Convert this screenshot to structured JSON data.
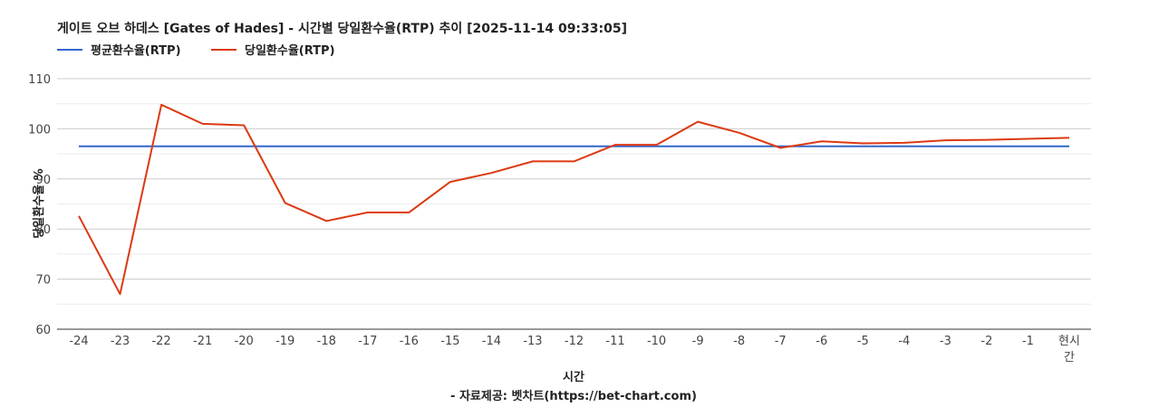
{
  "chart_data": {
    "type": "line",
    "title": "게이트 오브 하데스 [Gates of Hades] - 시간별 당일환수율(RTP) 추이 [2025-11-14 09:33:05]",
    "xlabel": "시간",
    "ylabel": "당일환수율 %",
    "source": "- 자료제공: 벳차트(https://bet-chart.com)",
    "categories": [
      "-24",
      "-23",
      "-22",
      "-21",
      "-20",
      "-19",
      "-18",
      "-17",
      "-16",
      "-15",
      "-14",
      "-13",
      "-12",
      "-11",
      "-10",
      "-9",
      "-8",
      "-7",
      "-6",
      "-5",
      "-4",
      "-3",
      "-2",
      "-1",
      "현시간"
    ],
    "ylim": [
      60,
      110
    ],
    "yticks": [
      60,
      70,
      80,
      90,
      100,
      110
    ],
    "grid": true,
    "legend_position": "top-left",
    "series": [
      {
        "name": "평균환수율(RTP)",
        "color": "#3366cc",
        "values": [
          96.5,
          96.5,
          96.5,
          96.5,
          96.5,
          96.5,
          96.5,
          96.5,
          96.5,
          96.5,
          96.5,
          96.5,
          96.5,
          96.5,
          96.5,
          96.5,
          96.5,
          96.5,
          96.5,
          96.5,
          96.5,
          96.5,
          96.5,
          96.5,
          96.5
        ]
      },
      {
        "name": "당일환수율(RTP)",
        "color": "#dc3912",
        "values": [
          82.6,
          67.0,
          104.8,
          101.0,
          100.7,
          85.2,
          81.6,
          83.3,
          83.3,
          89.4,
          91.2,
          93.5,
          93.5,
          96.8,
          96.8,
          101.4,
          99.2,
          96.2,
          97.5,
          97.1,
          97.2,
          97.7,
          97.8,
          98.0,
          98.2
        ]
      }
    ]
  }
}
